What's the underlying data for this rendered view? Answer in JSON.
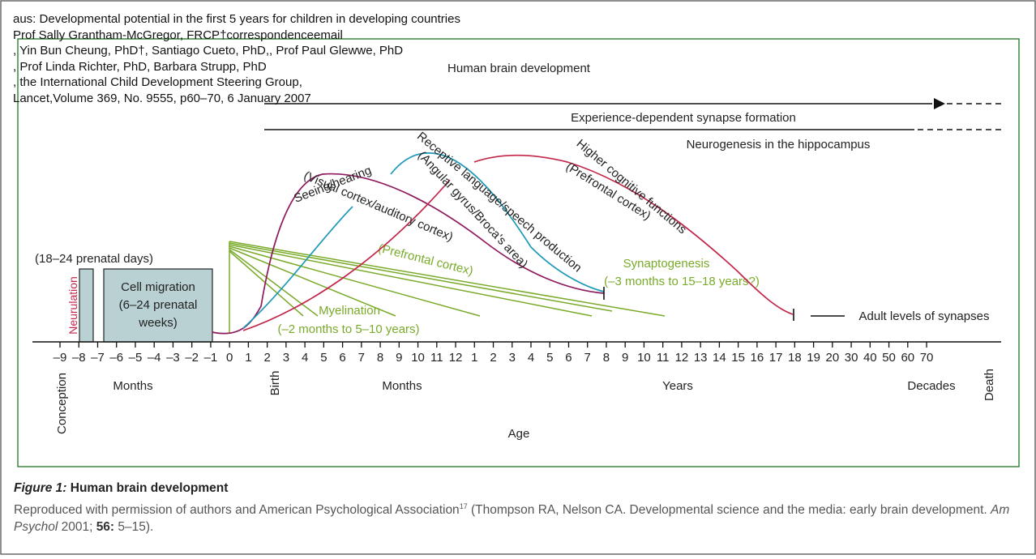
{
  "citation": {
    "lines": [
      "aus: Developmental potential in the first 5 years for children in developing countries",
      "Prof Sally Grantham-McGregor, FRCP†correspondenceemail",
      ", Yin Bun Cheung, PhD†, Santiago Cueto, PhD,, Prof Paul Glewwe, PhD",
      ", Prof Linda Richter, PhD, Barbara Strupp, PhD",
      ", the International Child Development Steering Group,",
      "Lancet,Volume 369, No. 9555, p60–70, 6 January 2007"
    ]
  },
  "diagram": {
    "title": "Human brain development",
    "bands": {
      "experience": "Experience-dependent synapse formation",
      "neurogenesis": "Neurogenesis in the hippocampus"
    },
    "prenatal": {
      "days_label": "(18–24 prenatal days)",
      "neurulation": "Neurulation",
      "cell_migration": [
        "Cell migration",
        "(6–24 prenatal",
        "weeks)"
      ]
    },
    "curves": {
      "seeing": [
        "Seeing/hearing",
        "(Visual cortex/auditory cortex)"
      ],
      "language": [
        "Receptive language/speech production",
        "(Angular gyrus/Broca's area)"
      ],
      "cognitive": [
        "Higher cognitive functions",
        "(Prefrontal cortex)"
      ]
    },
    "green": {
      "prefrontal": "(Prefrontal cortex)",
      "synaptogenesis": [
        "Synaptogenesis",
        "(–3 months to 15–18 years?)"
      ],
      "myelination": [
        "Myelination",
        "(–2 months to 5–10 years)"
      ]
    },
    "adult_label": "Adult levels of synapses",
    "ticks": [
      "–9",
      "–8",
      "–7",
      "–6",
      "–5",
      "–4",
      "–3",
      "–2",
      "–1",
      "0",
      "1",
      "2",
      "3",
      "4",
      "5",
      "6",
      "7",
      "8",
      "9",
      "10",
      "11",
      "12",
      "1",
      "2",
      "3",
      "4",
      "5",
      "6",
      "7",
      "8",
      "9",
      "10",
      "11",
      "12",
      "13",
      "14",
      "15",
      "16",
      "17",
      "18",
      "19",
      "20",
      "30",
      "40",
      "50",
      "60",
      "70"
    ],
    "axis_words": {
      "conception": "Conception",
      "months1": "Months",
      "birth": "Birth",
      "months2": "Months",
      "years": "Years",
      "decades": "Decades",
      "death": "Death",
      "age": "Age"
    },
    "colors": {
      "frame": "#2e7d32",
      "seeing": "#8e1a5e",
      "language": "#1e9ab8",
      "cognitive": "#c2264a",
      "green": "#7aaa2a",
      "box": "#b9d1d3"
    }
  },
  "caption": {
    "figure": "Figure 1:",
    "title": "Human brain development",
    "body": "Reproduced with permission of authors and American Psychological Association",
    "ref": "17",
    "after_ref": " (Thompson RA, Nelson CA. Developmental science and the media: early brain development. ",
    "journal": "Am Psychol",
    "year": " 2001; ",
    "volume": "56:",
    "pages": " 5–15)."
  }
}
